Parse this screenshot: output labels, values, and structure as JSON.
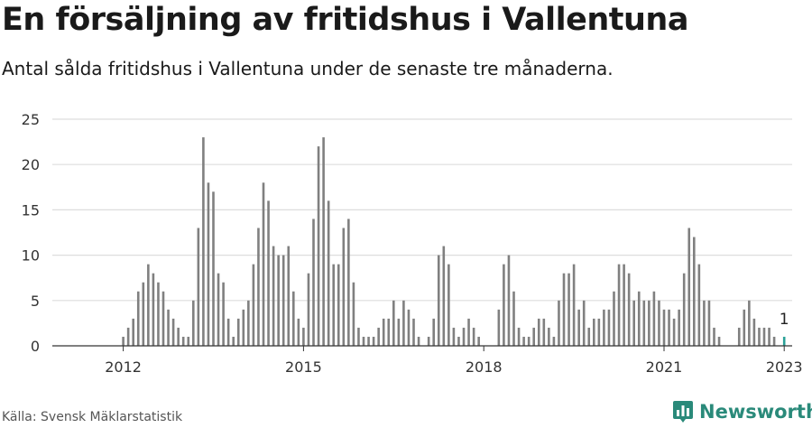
{
  "title": "En försäljning av fritidshus i Vallentuna",
  "subtitle": "Antal sålda fritidshus i Vallentuna under de senaste tre månaderna.",
  "source": "Källa: Svensk Mäklarstatistik",
  "brand": "Newsworthy",
  "colors": {
    "bar": "#808080",
    "highlight": "#2aa198",
    "grid": "#dddddd",
    "brand": "#2a8a7a"
  },
  "chart_data": {
    "type": "bar",
    "title": "En försäljning av fritidshus i Vallentuna",
    "xlabel": "",
    "ylabel": "",
    "ylim": [
      0,
      25
    ],
    "yticks": [
      0,
      5,
      10,
      15,
      20,
      25
    ],
    "xticks": [
      {
        "label": "2012",
        "index": 12
      },
      {
        "label": "2015",
        "index": 48
      },
      {
        "label": "2018",
        "index": 84
      },
      {
        "label": "2021",
        "index": 120
      },
      {
        "label": "2023",
        "index": 144
      }
    ],
    "first_month": "2011-01",
    "last_month": "2023-01",
    "values": [
      0,
      0,
      0,
      0,
      0,
      0,
      0,
      0,
      0,
      0,
      0,
      0,
      1,
      2,
      3,
      6,
      7,
      9,
      8,
      7,
      6,
      4,
      3,
      2,
      1,
      1,
      5,
      13,
      23,
      18,
      17,
      8,
      7,
      3,
      1,
      3,
      4,
      5,
      9,
      13,
      18,
      16,
      11,
      10,
      10,
      11,
      6,
      3,
      2,
      8,
      14,
      22,
      23,
      16,
      9,
      9,
      13,
      14,
      7,
      2,
      1,
      1,
      1,
      2,
      3,
      3,
      5,
      3,
      5,
      4,
      3,
      1,
      0,
      1,
      3,
      10,
      11,
      9,
      2,
      1,
      2,
      3,
      2,
      1,
      0,
      0,
      0,
      4,
      9,
      10,
      6,
      2,
      1,
      1,
      2,
      3,
      3,
      2,
      1,
      5,
      8,
      8,
      9,
      4,
      5,
      2,
      3,
      3,
      4,
      4,
      6,
      9,
      9,
      8,
      5,
      6,
      5,
      5,
      6,
      5,
      4,
      4,
      3,
      4,
      8,
      13,
      12,
      9,
      5,
      5,
      2,
      1,
      0,
      0,
      0,
      2,
      4,
      5,
      3,
      2,
      2,
      2,
      1,
      0,
      1
    ],
    "highlight": {
      "index": 144,
      "value": 1,
      "label": "1"
    }
  }
}
